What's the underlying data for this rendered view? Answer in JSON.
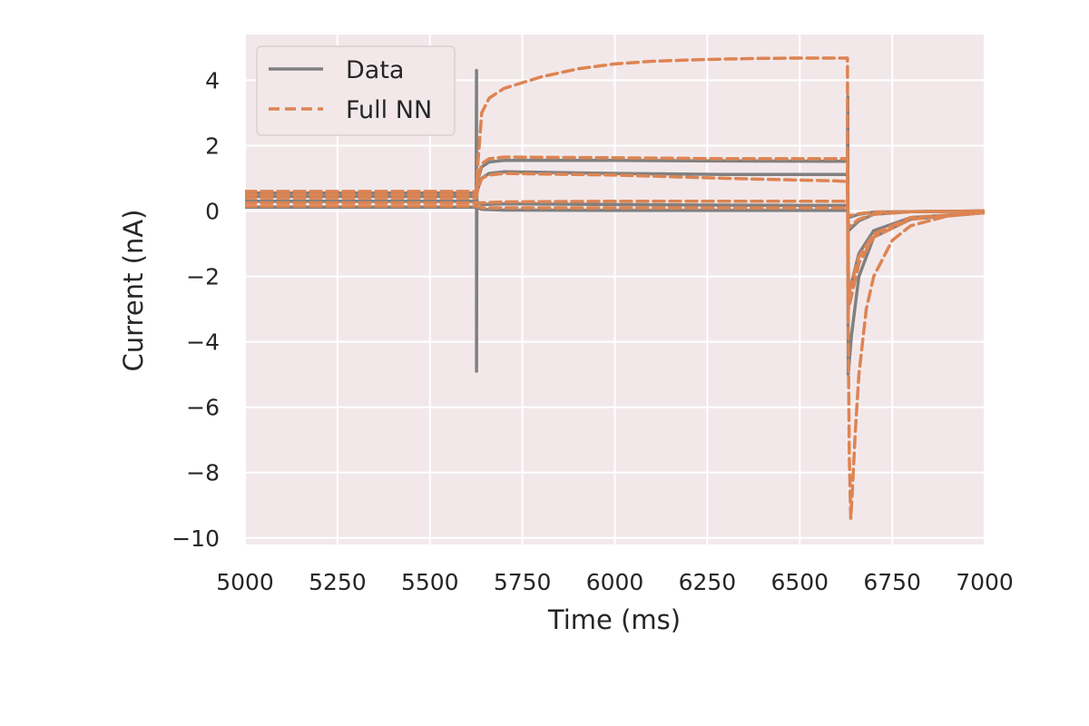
{
  "chart_data": {
    "type": "line",
    "title": "",
    "xlabel": "Time (ms)",
    "ylabel": "Current (nA)",
    "xlim": [
      5000,
      7000
    ],
    "ylim": [
      -10.2,
      5.4
    ],
    "xticks": [
      5000,
      5250,
      5500,
      5750,
      6000,
      6250,
      6500,
      6750,
      7000
    ],
    "yticks": [
      -10,
      -8,
      -6,
      -4,
      -2,
      0,
      2,
      4
    ],
    "xtick_labels": [
      "5000",
      "5250",
      "5500",
      "5750",
      "6000",
      "6250",
      "6500",
      "6750",
      "7000"
    ],
    "ytick_labels": [
      "−10",
      "−8",
      "−6",
      "−4",
      "−2",
      "0",
      "2",
      "4"
    ],
    "grid": true,
    "legend_position": "top-left",
    "background_color": "#f2e8ea",
    "step_on_ms": 5630,
    "step_off_ms": 6630,
    "series": [
      {
        "name": "Data",
        "color": "#808080",
        "style": "solid",
        "traces": [
          {
            "x": [
              5000,
              5625,
              5626,
              5626,
              5627,
              5628,
              5640,
              5660,
              5700,
              6000,
              6300,
              6600,
              6629,
              6630,
              6631,
              6640,
              6660,
              6700,
              6800,
              7000
            ],
            "y": [
              0.55,
              0.55,
              4.3,
              -4.9,
              0.55,
              0.9,
              1.35,
              1.5,
              1.55,
              1.55,
              1.53,
              1.52,
              1.52,
              3.5,
              -5.0,
              -3.8,
              -2.0,
              -0.8,
              -0.25,
              -0.05
            ]
          },
          {
            "x": [
              5000,
              5625,
              5630,
              5640,
              5660,
              5700,
              6000,
              6300,
              6600,
              6629,
              6632,
              6640,
              6660,
              6700,
              6800,
              7000
            ],
            "y": [
              0.45,
              0.45,
              0.7,
              1.0,
              1.15,
              1.2,
              1.15,
              1.12,
              1.12,
              1.12,
              -2.5,
              -2.2,
              -1.3,
              -0.6,
              -0.2,
              -0.05
            ]
          },
          {
            "x": [
              5000,
              5625,
              5640,
              5700,
              6000,
              6300,
              6600,
              6629,
              6632,
              6660,
              6700,
              6800,
              7000
            ],
            "y": [
              0.3,
              0.3,
              0.2,
              0.22,
              0.2,
              0.18,
              0.17,
              0.17,
              -0.6,
              -0.3,
              -0.1,
              -0.02,
              0.0
            ]
          },
          {
            "x": [
              5000,
              5625,
              5640,
              5700,
              6000,
              6300,
              6600,
              6629,
              6632,
              6660,
              6700,
              7000
            ],
            "y": [
              0.12,
              0.12,
              0.05,
              0.03,
              0.02,
              0.02,
              0.02,
              0.02,
              -0.2,
              -0.1,
              -0.03,
              0.0
            ]
          }
        ]
      },
      {
        "name": "Full NN",
        "color": "#dd8452",
        "style": "dashed",
        "traces": [
          {
            "x": [
              5000,
              5625,
              5630,
              5640,
              5660,
              5700,
              5800,
              5900,
              6000,
              6100,
              6200,
              6300,
              6400,
              6500,
              6600,
              6629,
              6630,
              6634,
              6638,
              6642,
              6650,
              6660,
              6680,
              6700,
              6750,
              6800,
              6900,
              7000
            ],
            "y": [
              0.5,
              0.5,
              1.5,
              3.0,
              3.45,
              3.75,
              4.1,
              4.35,
              4.5,
              4.58,
              4.62,
              4.65,
              4.67,
              4.68,
              4.68,
              4.68,
              -2.0,
              -7.5,
              -9.4,
              -8.6,
              -6.8,
              -5.0,
              -3.0,
              -2.0,
              -0.9,
              -0.45,
              -0.15,
              -0.05
            ]
          },
          {
            "x": [
              5000,
              5625,
              5630,
              5640,
              5660,
              5700,
              6000,
              6300,
              6600,
              6629,
              6632,
              6640,
              6660,
              6700,
              6800,
              7000
            ],
            "y": [
              0.6,
              0.6,
              1.0,
              1.45,
              1.6,
              1.65,
              1.63,
              1.6,
              1.6,
              1.6,
              -2.6,
              -2.2,
              -1.4,
              -0.7,
              -0.2,
              -0.05
            ]
          },
          {
            "x": [
              5000,
              5625,
              5630,
              5640,
              5660,
              5700,
              6000,
              6300,
              6600,
              6629,
              6632,
              6640,
              6660,
              6700,
              6800,
              7000
            ],
            "y": [
              0.4,
              0.4,
              0.7,
              1.0,
              1.1,
              1.15,
              1.1,
              1.0,
              0.92,
              0.9,
              -3.0,
              -2.6,
              -1.6,
              -0.8,
              -0.25,
              -0.05
            ]
          },
          {
            "x": [
              5000,
              5625,
              5640,
              5700,
              6000,
              6300,
              6600,
              6629,
              6632,
              6660,
              6700,
              6800,
              7000
            ],
            "y": [
              0.25,
              0.25,
              0.25,
              0.28,
              0.3,
              0.3,
              0.3,
              0.3,
              -0.5,
              -0.25,
              -0.1,
              -0.02,
              0.0
            ]
          },
          {
            "x": [
              5000,
              5625,
              5640,
              5700,
              6000,
              6300,
              6600,
              6629,
              6632,
              6660,
              6700,
              7000
            ],
            "y": [
              0.15,
              0.15,
              0.1,
              0.1,
              0.1,
              0.1,
              0.1,
              0.1,
              -0.15,
              -0.08,
              -0.03,
              0.0
            ]
          }
        ]
      }
    ]
  }
}
